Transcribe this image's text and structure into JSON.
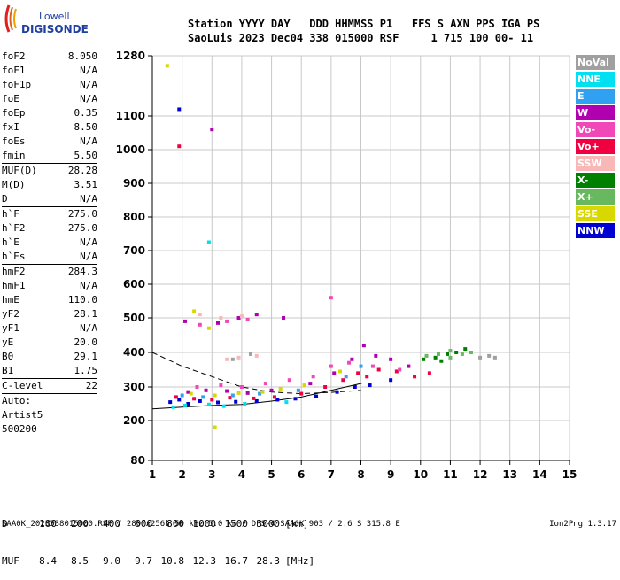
{
  "logo": {
    "line1": "Lowell",
    "line2": "DIGISONDE"
  },
  "header": {
    "line1": "Station YYYY DAY   DDD HHMMSS P1   FFS S AXN PPS IGA PS",
    "line2": "SaoLuis 2023 Dec04 338 015000 RSF     1 715 100 00- 11"
  },
  "params": {
    "group1": [
      {
        "name": "foF2",
        "value": "8.050"
      },
      {
        "name": "foF1",
        "value": "N/A"
      },
      {
        "name": "foF1p",
        "value": "N/A"
      },
      {
        "name": "foE",
        "value": "N/A"
      },
      {
        "name": "foEp",
        "value": "0.35"
      },
      {
        "name": "fxI",
        "value": "8.50"
      },
      {
        "name": "foEs",
        "value": "N/A"
      },
      {
        "name": "fmin",
        "value": "5.50"
      }
    ],
    "group2": [
      {
        "name": "MUF(D)",
        "value": "28.28"
      },
      {
        "name": "M(D)",
        "value": "3.51"
      },
      {
        "name": "D",
        "value": "N/A"
      }
    ],
    "group3": [
      {
        "name": "h`F",
        "value": "275.0"
      },
      {
        "name": "h`F2",
        "value": "275.0"
      },
      {
        "name": "h`E",
        "value": "N/A"
      },
      {
        "name": "h`Es",
        "value": "N/A"
      }
    ],
    "group4": [
      {
        "name": "hmF2",
        "value": "284.3"
      },
      {
        "name": "hmF1",
        "value": "N/A"
      },
      {
        "name": "hmE",
        "value": "110.0"
      },
      {
        "name": "yF2",
        "value": "28.1"
      },
      {
        "name": "yF1",
        "value": "N/A"
      },
      {
        "name": "yE",
        "value": "20.0"
      },
      {
        "name": "B0",
        "value": "29.1"
      },
      {
        "name": "B1",
        "value": "1.75"
      }
    ],
    "group5": [
      {
        "name": "C-level",
        "value": "22"
      }
    ],
    "extra": [
      "Auto:",
      "Artist5",
      "500200"
    ]
  },
  "legend": [
    {
      "label": "NoVal",
      "color": "#a0a0a0"
    },
    {
      "label": "NNE",
      "color": "#00e0f0"
    },
    {
      "label": "E",
      "color": "#30a0f0"
    },
    {
      "label": "W",
      "color": "#b000b0"
    },
    {
      "label": "Vo-",
      "color": "#f048b8"
    },
    {
      "label": "Vo+",
      "color": "#f00040"
    },
    {
      "label": "SSW",
      "color": "#f8b8b8"
    },
    {
      "label": "X-",
      "color": "#008000"
    },
    {
      "label": "X+",
      "color": "#68b860"
    },
    {
      "label": "SSE",
      "color": "#d8d800"
    },
    {
      "label": "NNW",
      "color": "#0000d0"
    }
  ],
  "muf_table": {
    "d_label": "D",
    "d_values": [
      "100",
      "200",
      "400",
      "600",
      "800",
      "1000",
      "1500",
      "3000"
    ],
    "d_unit": "[km]",
    "muf_label": "MUF",
    "muf_values": [
      "8.4",
      "8.5",
      "9.0",
      "9.7",
      "10.8",
      "12.3",
      "16.7",
      "28.3"
    ],
    "muf_unit": "[MHz]"
  },
  "footer": "SAA0K_2023338015000.RSF / 280fx256h 50 kHz 5.0 km / DPS-4 SAA0K 903 / 2.6 S 315.8 E",
  "version": "Ion2Png 1.3.17",
  "chart_data": {
    "type": "scatter",
    "x_ticks": [
      1,
      2,
      3,
      4,
      5,
      6,
      7,
      8,
      9,
      10,
      11,
      12,
      13,
      14,
      15
    ],
    "y_ticks": [
      80,
      200,
      300,
      400,
      500,
      600,
      700,
      800,
      900,
      1000,
      1100,
      1280
    ],
    "xlim": [
      1,
      15
    ],
    "y_scale": "piecewise",
    "grid": true,
    "series": [
      {
        "color": "#0000d0",
        "points": [
          [
            1.6,
            255
          ],
          [
            1.9,
            262
          ],
          [
            2.2,
            250
          ],
          [
            2.6,
            258
          ],
          [
            3.2,
            254
          ],
          [
            3.8,
            256
          ],
          [
            4.5,
            258
          ],
          [
            5.2,
            262
          ],
          [
            5.8,
            265
          ],
          [
            6.5,
            272
          ],
          [
            7.2,
            285
          ],
          [
            7.8,
            300
          ],
          [
            8.3,
            305
          ],
          [
            9.0,
            320
          ],
          [
            1.9,
            1120
          ]
        ]
      },
      {
        "color": "#f00040",
        "points": [
          [
            1.8,
            270
          ],
          [
            2.4,
            265
          ],
          [
            3.0,
            262
          ],
          [
            3.6,
            268
          ],
          [
            4.4,
            266
          ],
          [
            5.1,
            270
          ],
          [
            6.0,
            280
          ],
          [
            6.8,
            300
          ],
          [
            7.4,
            320
          ],
          [
            7.9,
            340
          ],
          [
            8.2,
            330
          ],
          [
            8.6,
            350
          ],
          [
            9.2,
            345
          ],
          [
            9.8,
            330
          ],
          [
            10.3,
            340
          ],
          [
            1.9,
            1010
          ]
        ]
      },
      {
        "color": "#b000b0",
        "points": [
          [
            2.2,
            285
          ],
          [
            2.8,
            290
          ],
          [
            3.5,
            288
          ],
          [
            4.2,
            282
          ],
          [
            5.0,
            290
          ],
          [
            6.3,
            310
          ],
          [
            7.1,
            340
          ],
          [
            7.7,
            380
          ],
          [
            8.1,
            420
          ],
          [
            8.5,
            390
          ],
          [
            9.0,
            380
          ],
          [
            9.6,
            360
          ],
          [
            2.1,
            490
          ],
          [
            3.2,
            485
          ],
          [
            3.9,
            500
          ],
          [
            4.5,
            510
          ],
          [
            5.4,
            500
          ],
          [
            3.0,
            1060
          ]
        ]
      },
      {
        "color": "#f048b8",
        "points": [
          [
            2.5,
            300
          ],
          [
            3.3,
            305
          ],
          [
            4.0,
            300
          ],
          [
            4.8,
            310
          ],
          [
            5.6,
            320
          ],
          [
            6.4,
            330
          ],
          [
            7.0,
            360
          ],
          [
            7.6,
            370
          ],
          [
            8.4,
            360
          ],
          [
            9.3,
            350
          ],
          [
            2.6,
            480
          ],
          [
            3.5,
            490
          ],
          [
            4.2,
            495
          ],
          [
            7.0,
            560
          ]
        ]
      },
      {
        "color": "#00e0f0",
        "points": [
          [
            1.7,
            240
          ],
          [
            2.1,
            245
          ],
          [
            2.9,
            248
          ],
          [
            3.4,
            243
          ],
          [
            4.1,
            250
          ],
          [
            5.5,
            255
          ],
          [
            2.9,
            725
          ]
        ]
      },
      {
        "color": "#30a0f0",
        "points": [
          [
            2.0,
            275
          ],
          [
            2.7,
            270
          ],
          [
            3.7,
            275
          ],
          [
            4.6,
            280
          ],
          [
            5.9,
            290
          ],
          [
            7.5,
            330
          ],
          [
            8.0,
            360
          ]
        ]
      },
      {
        "color": "#d8d800",
        "points": [
          [
            1.5,
            1250
          ],
          [
            2.3,
            280
          ],
          [
            3.1,
            275
          ],
          [
            3.9,
            282
          ],
          [
            4.7,
            285
          ],
          [
            5.3,
            295
          ],
          [
            6.1,
            305
          ],
          [
            7.3,
            345
          ],
          [
            2.4,
            520
          ],
          [
            2.9,
            470
          ],
          [
            3.1,
            180
          ]
        ]
      },
      {
        "color": "#008000",
        "points": [
          [
            10.1,
            380
          ],
          [
            10.5,
            385
          ],
          [
            10.9,
            395
          ],
          [
            11.2,
            400
          ],
          [
            11.5,
            410
          ],
          [
            10.7,
            375
          ]
        ]
      },
      {
        "color": "#68b860",
        "points": [
          [
            10.2,
            390
          ],
          [
            10.6,
            395
          ],
          [
            11.0,
            385
          ],
          [
            11.4,
            395
          ],
          [
            11.7,
            400
          ],
          [
            11.0,
            405
          ]
        ]
      },
      {
        "color": "#f8b8b8",
        "points": [
          [
            3.5,
            380
          ],
          [
            3.9,
            385
          ],
          [
            4.5,
            390
          ],
          [
            2.6,
            510
          ],
          [
            3.3,
            500
          ],
          [
            4.0,
            505
          ]
        ]
      },
      {
        "color": "#a0a0a0",
        "points": [
          [
            12.0,
            385
          ],
          [
            12.3,
            390
          ],
          [
            12.5,
            385
          ],
          [
            3.7,
            380
          ],
          [
            4.3,
            395
          ]
        ]
      }
    ],
    "profile_lines": [
      {
        "style": "solid",
        "points": [
          [
            1,
            235
          ],
          [
            2,
            240
          ],
          [
            3,
            245
          ],
          [
            4,
            248
          ],
          [
            5,
            258
          ],
          [
            6,
            270
          ],
          [
            7,
            290
          ],
          [
            8,
            310
          ],
          [
            8.05,
            312
          ]
        ]
      },
      {
        "style": "dashed",
        "points": [
          [
            1,
            400
          ],
          [
            2,
            360
          ],
          [
            3,
            330
          ],
          [
            4,
            300
          ],
          [
            5,
            285
          ],
          [
            6,
            280
          ],
          [
            7,
            284
          ],
          [
            8,
            290
          ]
        ]
      }
    ]
  }
}
